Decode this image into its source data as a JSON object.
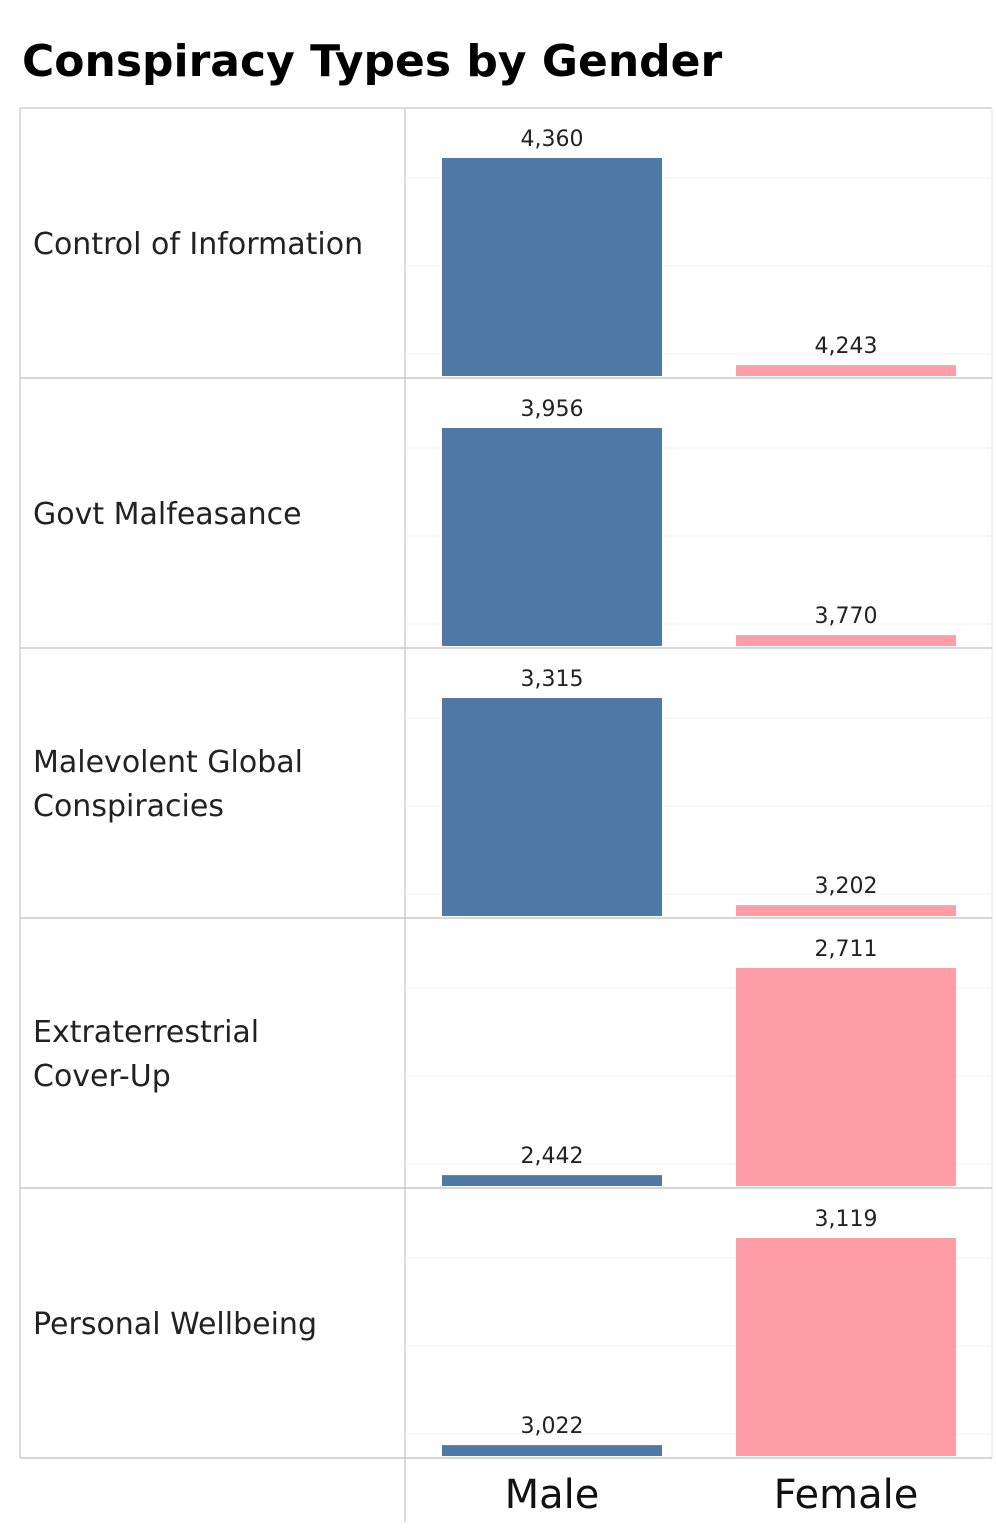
{
  "chart_data": {
    "type": "bar",
    "title": "Conspiracy Types by Gender",
    "layout": "small-multiples-rows",
    "categories": [
      "Male",
      "Female"
    ],
    "rows": [
      {
        "label": "Control of Information",
        "values": [
          4360,
          4243
        ]
      },
      {
        "label": "Govt Malfeasance",
        "values": [
          3956,
          3770
        ]
      },
      {
        "label": "Malevolent Global Conspiracies",
        "values": [
          3315,
          3202
        ]
      },
      {
        "label": "Extraterrestrial Cover-Up",
        "values": [
          2442,
          2711
        ]
      },
      {
        "label": "Personal Wellbeing",
        "values": [
          3022,
          3119
        ]
      }
    ],
    "colors": {
      "Male": "#4e79a7",
      "Female": "#ff9da7"
    },
    "axis": "independent per row, not shown",
    "grid": true,
    "legend": "none"
  }
}
